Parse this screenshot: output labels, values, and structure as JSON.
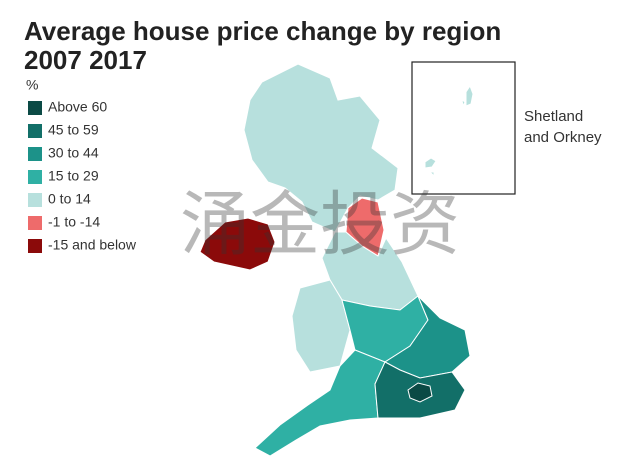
{
  "header": {
    "title_line1": "Average house price change by region",
    "title_line2": "2007 2017"
  },
  "legend": {
    "unit": "%",
    "items": [
      {
        "label": "Above 60",
        "color": "#0b4a45"
      },
      {
        "label": "45 to 59",
        "color": "#126f68"
      },
      {
        "label": "30 to 44",
        "color": "#1c9289"
      },
      {
        "label": "15 to 29",
        "color": "#2fb0a4"
      },
      {
        "label": "0 to 14",
        "color": "#b7e0dd"
      },
      {
        "label": "-1 to -14",
        "color": "#ee6b6b"
      },
      {
        "label": "-15 and below",
        "color": "#8b0a0a"
      }
    ]
  },
  "inset": {
    "label_line1": "Shetland",
    "label_line2": "and Orkney"
  },
  "watermark": "涌金投资"
}
